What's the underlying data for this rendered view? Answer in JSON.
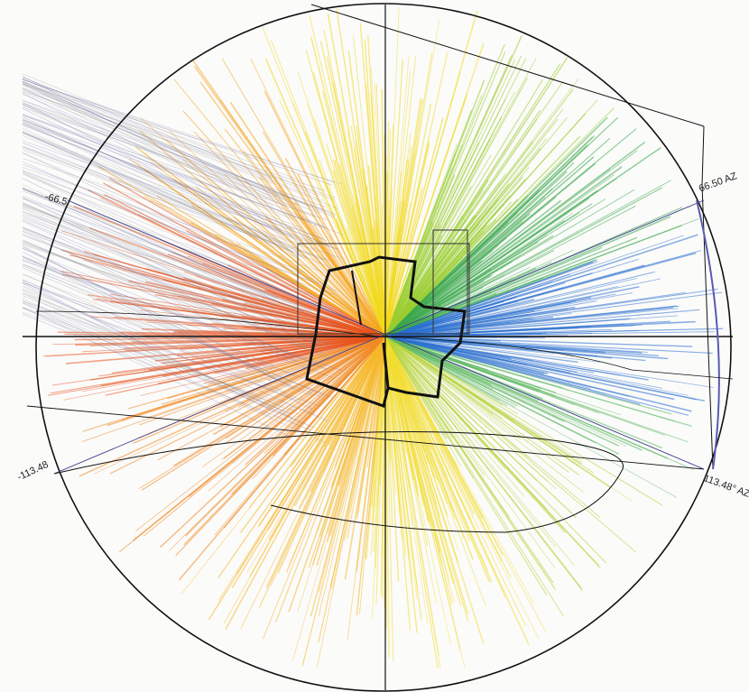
{
  "annotations": {
    "left_upper": "-66.5",
    "right_upper": "66.50 AZ",
    "left_lower": "-113.48",
    "right_lower": "113.48° AZ"
  }
}
